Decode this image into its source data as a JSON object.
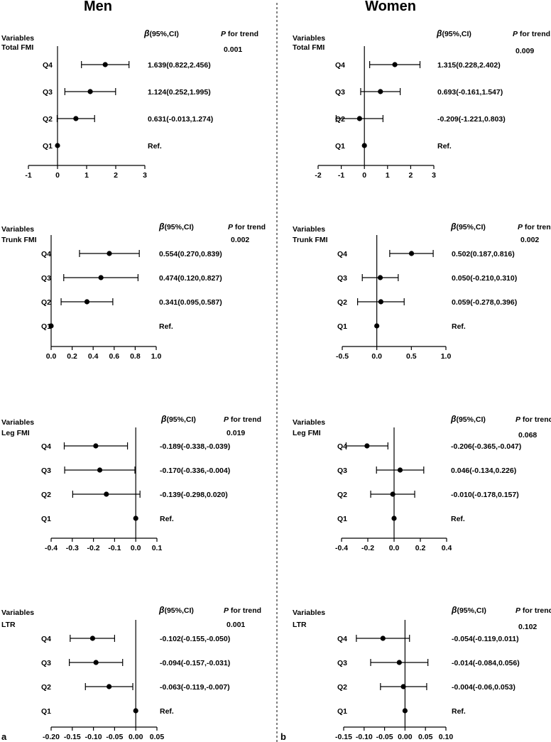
{
  "figure": {
    "headers": {
      "men": "Men",
      "women": "Women"
    },
    "panel_labels": {
      "a": "a",
      "b": "b"
    },
    "column_labels": {
      "variables": "Variables",
      "beta_prefix": "β",
      "beta_suffix": "(95%,CI)",
      "p_prefix": "P",
      "p_suffix": " for trend"
    }
  },
  "chart_data": [
    {
      "type": "forest",
      "id": "men-total",
      "sex": "Men",
      "variable": "Total FMI",
      "p_trend": "0.001",
      "xlim": [
        -1,
        3
      ],
      "ticks": [
        -1,
        0,
        1,
        2,
        3
      ],
      "tick_labels": [
        "-1",
        "0",
        "1",
        "2",
        "3"
      ],
      "rows": [
        {
          "label": "Q4",
          "estimate": 1.639,
          "lower": 0.822,
          "upper": 2.456,
          "text": "1.639(0.822,2.456)"
        },
        {
          "label": "Q3",
          "estimate": 1.124,
          "lower": 0.252,
          "upper": 1.995,
          "text": "1.124(0.252,1.995)"
        },
        {
          "label": "Q2",
          "estimate": 0.631,
          "lower": -0.013,
          "upper": 1.274,
          "text": "0.631(-0.013,1.274)"
        },
        {
          "label": "Q1",
          "estimate": 0,
          "lower": null,
          "upper": null,
          "text": "Ref."
        }
      ]
    },
    {
      "type": "forest",
      "id": "women-total",
      "sex": "Women",
      "variable": "Total FMI",
      "p_trend": "0.009",
      "xlim": [
        -2,
        3
      ],
      "ticks": [
        -2,
        -1,
        0,
        1,
        2,
        3
      ],
      "tick_labels": [
        "-2",
        "-1",
        "0",
        "1",
        "2",
        "3"
      ],
      "rows": [
        {
          "label": "Q4",
          "estimate": 1.315,
          "lower": 0.228,
          "upper": 2.402,
          "text": "1.315(0.228,2.402)"
        },
        {
          "label": "Q3",
          "estimate": 0.693,
          "lower": -0.161,
          "upper": 1.547,
          "text": "0.693(-0.161,1.547)"
        },
        {
          "label": "Q2",
          "estimate": -0.209,
          "lower": -1.221,
          "upper": 0.803,
          "text": "-0.209(-1.221,0.803)"
        },
        {
          "label": "Q1",
          "estimate": 0,
          "lower": null,
          "upper": null,
          "text": "Ref."
        }
      ]
    },
    {
      "type": "forest",
      "id": "men-trunk",
      "sex": "Men",
      "variable": "Trunk FMI",
      "p_trend": "0.002",
      "xlim": [
        0,
        1
      ],
      "ticks": [
        0,
        0.2,
        0.4,
        0.6,
        0.8,
        1
      ],
      "tick_labels": [
        "0.0",
        "0.2",
        "0.4",
        "0.6",
        "0.8",
        "1.0"
      ],
      "rows": [
        {
          "label": "Q4",
          "estimate": 0.554,
          "lower": 0.27,
          "upper": 0.839,
          "text": "0.554(0.270,0.839)"
        },
        {
          "label": "Q3",
          "estimate": 0.474,
          "lower": 0.12,
          "upper": 0.827,
          "text": "0.474(0.120,0.827)"
        },
        {
          "label": "Q2",
          "estimate": 0.341,
          "lower": 0.095,
          "upper": 0.587,
          "text": "0.341(0.095,0.587)"
        },
        {
          "label": "Q1",
          "estimate": 0,
          "lower": null,
          "upper": null,
          "text": "Ref."
        }
      ]
    },
    {
      "type": "forest",
      "id": "women-trunk",
      "sex": "Women",
      "variable": "Trunk FMI",
      "p_trend": "0.002",
      "xlim": [
        -0.5,
        1
      ],
      "ticks": [
        -0.5,
        0,
        0.5,
        1
      ],
      "tick_labels": [
        "-0.5",
        "0.0",
        "0.5",
        "1.0"
      ],
      "rows": [
        {
          "label": "Q4",
          "estimate": 0.502,
          "lower": 0.187,
          "upper": 0.816,
          "text": "0.502(0.187,0.816)"
        },
        {
          "label": "Q3",
          "estimate": 0.05,
          "lower": -0.21,
          "upper": 0.31,
          "text": "0.050(-0.210,0.310)"
        },
        {
          "label": "Q2",
          "estimate": 0.059,
          "lower": -0.278,
          "upper": 0.396,
          "text": "0.059(-0.278,0.396)"
        },
        {
          "label": "Q1",
          "estimate": 0,
          "lower": null,
          "upper": null,
          "text": "Ref."
        }
      ]
    },
    {
      "type": "forest",
      "id": "men-leg",
      "sex": "Men",
      "variable": "Leg FMI",
      "p_trend": "0.019",
      "xlim": [
        -0.4,
        0.1
      ],
      "ticks": [
        -0.4,
        -0.3,
        -0.2,
        -0.1,
        0,
        0.1
      ],
      "tick_labels": [
        "-0.4",
        "-0.3",
        "-0.2",
        "-0.1",
        "0.0",
        "0.1"
      ],
      "rows": [
        {
          "label": "Q4",
          "estimate": -0.189,
          "lower": -0.338,
          "upper": -0.039,
          "text": "-0.189(-0.338,-0.039)"
        },
        {
          "label": "Q3",
          "estimate": -0.17,
          "lower": -0.336,
          "upper": -0.004,
          "text": "-0.170(-0.336,-0.004)"
        },
        {
          "label": "Q2",
          "estimate": -0.139,
          "lower": -0.298,
          "upper": 0.02,
          "text": "-0.139(-0.298,0.020)"
        },
        {
          "label": "Q1",
          "estimate": 0,
          "lower": null,
          "upper": null,
          "text": "Ref."
        }
      ]
    },
    {
      "type": "forest",
      "id": "women-leg",
      "sex": "Women",
      "variable": "Leg FMI",
      "p_trend": "0.068",
      "xlim": [
        -0.4,
        0.4
      ],
      "ticks": [
        -0.4,
        -0.2,
        0,
        0.2,
        0.4
      ],
      "tick_labels": [
        "-0.4",
        "-0.2",
        "0.0",
        "0.2",
        "0.4"
      ],
      "rows": [
        {
          "label": "Q4",
          "estimate": -0.206,
          "lower": -0.365,
          "upper": -0.047,
          "text": "-0.206(-0.365,-0.047)"
        },
        {
          "label": "Q3",
          "estimate": 0.046,
          "lower": -0.134,
          "upper": 0.226,
          "text": "0.046(-0.134,0.226)"
        },
        {
          "label": "Q2",
          "estimate": -0.01,
          "lower": -0.178,
          "upper": 0.157,
          "text": "-0.010(-0.178,0.157)"
        },
        {
          "label": "Q1",
          "estimate": 0,
          "lower": null,
          "upper": null,
          "text": "Ref."
        }
      ]
    },
    {
      "type": "forest",
      "id": "men-ltr",
      "sex": "Men",
      "variable": "LTR",
      "p_trend": "0.001",
      "xlim": [
        -0.2,
        0.05
      ],
      "ticks": [
        -0.2,
        -0.15,
        -0.1,
        -0.05,
        0,
        0.05
      ],
      "tick_labels": [
        "-0.20",
        "-0.15",
        "-0.10",
        "-0.05",
        "0.00",
        "0.05"
      ],
      "rows": [
        {
          "label": "Q4",
          "estimate": -0.102,
          "lower": -0.155,
          "upper": -0.05,
          "text": "-0.102(-0.155,-0.050)"
        },
        {
          "label": "Q3",
          "estimate": -0.094,
          "lower": -0.157,
          "upper": -0.031,
          "text": "-0.094(-0.157,-0.031)"
        },
        {
          "label": "Q2",
          "estimate": -0.063,
          "lower": -0.119,
          "upper": -0.007,
          "text": "-0.063(-0.119,-0.007)"
        },
        {
          "label": "Q1",
          "estimate": 0,
          "lower": null,
          "upper": null,
          "text": "Ref."
        }
      ]
    },
    {
      "type": "forest",
      "id": "women-ltr",
      "sex": "Women",
      "variable": "LTR",
      "p_trend": "0.102",
      "xlim": [
        -0.15,
        0.1
      ],
      "ticks": [
        -0.15,
        -0.1,
        -0.05,
        0,
        0.05,
        0.1
      ],
      "tick_labels": [
        "-0.15",
        "-0.10",
        "-0.05",
        "0.00",
        "0.05",
        "0.10"
      ],
      "rows": [
        {
          "label": "Q4",
          "estimate": -0.054,
          "lower": -0.119,
          "upper": 0.011,
          "text": "-0.054(-0.119,0.011)"
        },
        {
          "label": "Q3",
          "estimate": -0.014,
          "lower": -0.084,
          "upper": 0.056,
          "text": "-0.014(-0.084,0.056)"
        },
        {
          "label": "Q2",
          "estimate": -0.004,
          "lower": -0.06,
          "upper": 0.053,
          "text": "-0.004(-0.06,0.053)"
        },
        {
          "label": "Q1",
          "estimate": 0,
          "lower": null,
          "upper": null,
          "text": "Ref."
        }
      ]
    }
  ]
}
